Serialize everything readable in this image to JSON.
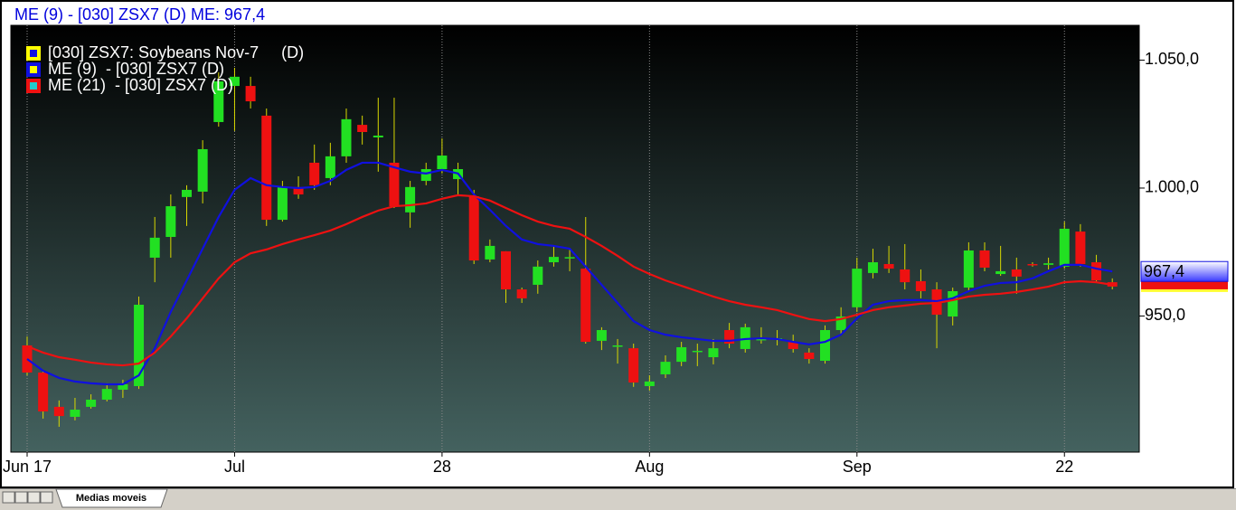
{
  "header": {
    "title": "ME (9)  - [030] ZSX7 (D)  ME: 967,4"
  },
  "chart_data": {
    "type": "candlestick",
    "name": "[030] ZSX7: Soybeans Nov-7     (D)",
    "legend_color": "#ffff00",
    "up_color": "#22e022",
    "down_color": "#ee1111",
    "wick_color": "#d8d800",
    "categories": [
      "Jun 17",
      null,
      null,
      null,
      null,
      null,
      null,
      null,
      null,
      null,
      null,
      null,
      null,
      "Jul",
      null,
      null,
      null,
      null,
      null,
      null,
      null,
      null,
      null,
      null,
      null,
      null,
      "28",
      null,
      null,
      null,
      null,
      null,
      null,
      null,
      null,
      null,
      null,
      null,
      null,
      "Aug",
      null,
      null,
      null,
      null,
      null,
      null,
      null,
      null,
      null,
      null,
      null,
      null,
      "Sep",
      null,
      null,
      null,
      null,
      null,
      null,
      null,
      null,
      null,
      null,
      null,
      null,
      "22",
      null,
      null,
      null
    ],
    "open": [
      938.5,
      927.9,
      914.5,
      910.6,
      914.5,
      917.3,
      921.2,
      922.6,
      972.8,
      980.9,
      996.5,
      998.6,
      1025.8,
      1039.9,
      1039.9,
      1028.3,
      987.6,
      1000.4,
      1009.9,
      1003.9,
      1012.4,
      1024.7,
      1019.8,
      1009.9,
      990.5,
      1002.8,
      1007.4,
      1003.5,
      996.8,
      972.1,
      975.3,
      960.4,
      962.2,
      971.0,
      972.8,
      968.5,
      940.3,
      938.2,
      937.4,
      922.6,
      927.2,
      932.1,
      936.0,
      933.9,
      944.5,
      937.1,
      940.6,
      941.0,
      939.9,
      935.7,
      932.5,
      944.5,
      953.4,
      966.8,
      970.3,
      968.2,
      963.6,
      960.4,
      949.8,
      961.1,
      975.6,
      966.4,
      968.2,
      970.3,
      970.0,
      969.3,
      983.0,
      971.0,
      963.2
    ],
    "high": [
      942.0,
      928.6,
      917.0,
      918.0,
      919.4,
      923.7,
      925.1,
      957.6,
      988.7,
      997.5,
      1001.1,
      1018.7,
      1045.2,
      1047.0,
      1043.5,
      1031.1,
      1002.8,
      1004.6,
      1017.0,
      1017.7,
      1031.1,
      1028.3,
      1035.3,
      1035.3,
      1002.8,
      1009.9,
      1019.4,
      1009.9,
      999.3,
      979.9,
      975.3,
      961.1,
      971.7,
      977.4,
      976.3,
      988.7,
      945.6,
      941.0,
      939.2,
      926.8,
      934.6,
      939.9,
      939.2,
      941.0,
      947.3,
      947.0,
      945.6,
      944.5,
      942.7,
      937.4,
      946.3,
      953.4,
      972.8,
      976.3,
      977.4,
      978.1,
      968.2,
      963.2,
      961.1,
      978.8,
      978.8,
      977.4,
      972.8,
      971.0,
      972.8,
      986.9,
      985.9,
      973.9,
      964.7
    ],
    "low": [
      926.8,
      909.9,
      906.7,
      909.2,
      913.8,
      916.6,
      918.0,
      921.5,
      963.2,
      972.8,
      985.2,
      994.0,
      1024.0,
      1022.3,
      1031.1,
      985.2,
      986.9,
      995.8,
      999.3,
      1001.1,
      1009.9,
      1017.0,
      1006.4,
      992.2,
      984.5,
      1001.1,
      1005.7,
      997.5,
      970.3,
      971.0,
      955.1,
      955.1,
      958.7,
      969.3,
      967.5,
      939.2,
      936.7,
      931.4,
      922.3,
      920.8,
      925.8,
      930.4,
      930.4,
      931.1,
      937.4,
      935.7,
      939.2,
      938.5,
      935.7,
      931.4,
      931.4,
      942.7,
      951.6,
      964.7,
      966.8,
      960.4,
      956.9,
      937.4,
      946.3,
      959.7,
      967.5,
      965.7,
      958.7,
      969.3,
      968.2,
      968.5,
      969.3,
      963.2,
      960.4
    ],
    "close": [
      927.9,
      912.7,
      910.9,
      913.4,
      917.3,
      921.5,
      923.3,
      954.4,
      980.6,
      992.9,
      999.3,
      1015.2,
      1041.7,
      1043.5,
      1033.9,
      987.6,
      1000.4,
      997.5,
      1001.1,
      1012.4,
      1026.9,
      1021.9,
      1020.5,
      992.9,
      1000.4,
      1007.4,
      1012.7,
      1007.4,
      971.7,
      977.4,
      960.4,
      956.9,
      969.3,
      973.1,
      973.0,
      939.9,
      944.5,
      938.5,
      924.0,
      924.4,
      932.1,
      937.8,
      936.4,
      937.4,
      939.2,
      945.6,
      941.0,
      941.3,
      937.1,
      933.2,
      944.5,
      949.8,
      968.5,
      971.0,
      968.5,
      963.2,
      959.7,
      950.5,
      959.7,
      975.6,
      968.9,
      967.5,
      965.4,
      969.9,
      970.6,
      984.1,
      970.3,
      963.9,
      961.5
    ],
    "series": [
      {
        "name": "ME (9)  - [030] ZSX7 (D)",
        "color": "#1010e0",
        "values": [
          933.2,
          928.6,
          925.8,
          924.4,
          923.7,
          923.3,
          923.3,
          926.8,
          937.4,
          951.6,
          963.9,
          976.3,
          988.7,
          999.3,
          1003.9,
          1001.1,
          1000.4,
          1000.0,
          1000.4,
          1002.8,
          1007.1,
          1009.9,
          1009.9,
          1008.1,
          1006.4,
          1005.7,
          1007.1,
          1005.7,
          997.5,
          991.5,
          985.2,
          979.9,
          978.1,
          977.4,
          976.3,
          969.3,
          962.2,
          955.1,
          948.0,
          944.5,
          942.7,
          941.7,
          941.0,
          940.3,
          940.3,
          941.0,
          941.3,
          941.0,
          939.9,
          938.9,
          939.9,
          942.7,
          949.1,
          954.4,
          955.8,
          956.2,
          956.2,
          955.8,
          956.9,
          959.7,
          961.8,
          962.9,
          963.2,
          964.7,
          967.5,
          970.0,
          970.0,
          968.5,
          967.4
        ],
        "tag": {
          "value": 967.4,
          "label": "967,4"
        }
      },
      {
        "name": "ME (21)  - [030] ZSX7 (D)",
        "color": "#ee1111",
        "values": [
          938.2,
          935.7,
          933.9,
          932.9,
          931.8,
          931.1,
          930.7,
          931.4,
          935.7,
          942.0,
          949.1,
          956.9,
          964.7,
          971.0,
          974.5,
          976.0,
          978.1,
          979.9,
          981.6,
          983.4,
          985.9,
          988.7,
          991.2,
          992.9,
          993.3,
          994.0,
          995.8,
          997.2,
          996.8,
          995.1,
          992.2,
          989.4,
          986.9,
          985.2,
          984.1,
          980.9,
          977.4,
          973.5,
          969.3,
          966.4,
          963.9,
          961.8,
          959.7,
          957.6,
          955.8,
          954.4,
          953.4,
          952.3,
          950.5,
          948.8,
          948.0,
          948.8,
          950.5,
          952.3,
          953.4,
          954.1,
          954.8,
          955.1,
          956.2,
          957.6,
          958.3,
          958.7,
          959.4,
          960.4,
          961.5,
          963.2,
          963.6,
          963.2,
          962.2
        ]
      }
    ],
    "ylim": [
      896.8,
      1063.6
    ],
    "yticks": [
      {
        "value": 950,
        "label": "950,0"
      },
      {
        "value": 1000,
        "label": "1.000,0"
      },
      {
        "value": 1050,
        "label": "1.050,0"
      }
    ],
    "grid": true
  },
  "tab": {
    "label": "Medias moveis"
  }
}
